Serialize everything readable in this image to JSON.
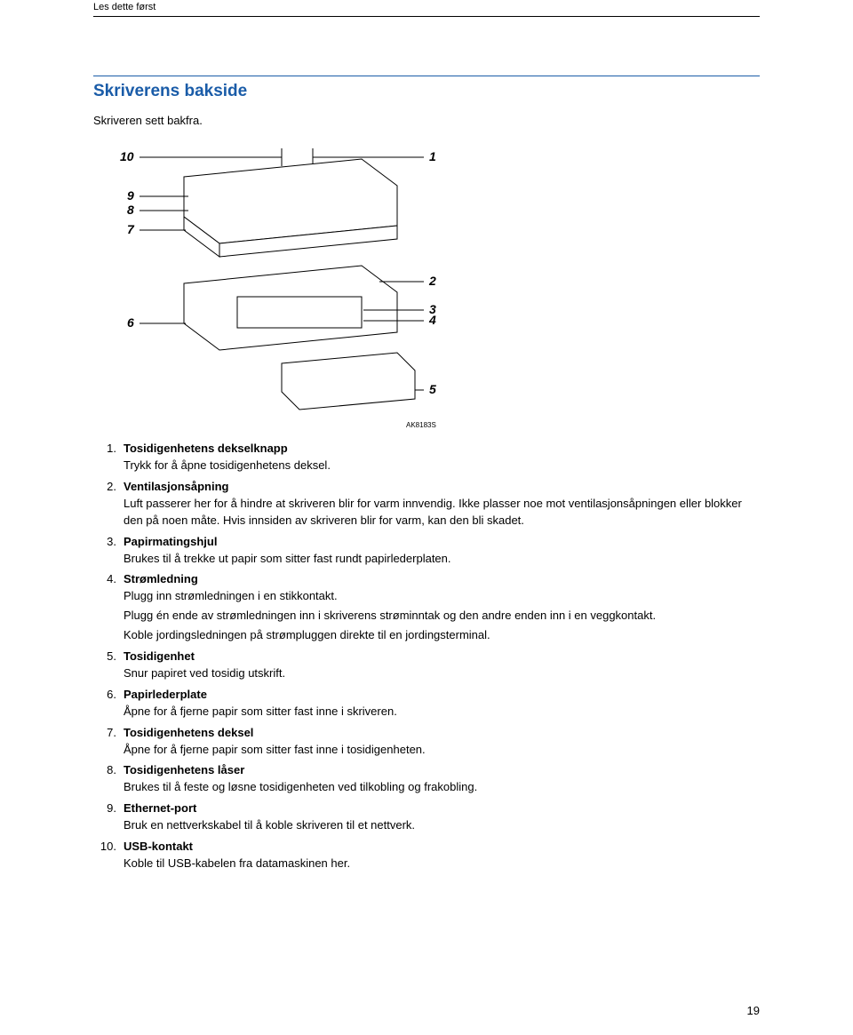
{
  "running_head": "Les dette først",
  "section_title": "Skriverens bakside",
  "lead": "Skriveren sett bakfra.",
  "figure": {
    "callouts_left": [
      "10",
      "9",
      "8",
      "7",
      "6"
    ],
    "callouts_right": [
      "1",
      "2",
      "3",
      "4",
      "5"
    ],
    "ref": "AK8183S"
  },
  "items": [
    {
      "term": "Tosidigenhetens dekselknapp",
      "paras": [
        "Trykk for å åpne tosidigenhetens deksel."
      ]
    },
    {
      "term": "Ventilasjonsåpning",
      "paras": [
        "Luft passerer her for å hindre at skriveren blir for varm innvendig. Ikke plasser noe mot ventilasjonsåpningen eller blokker den på noen måte. Hvis innsiden av skriveren blir for varm, kan den bli skadet."
      ]
    },
    {
      "term": "Papirmatingshjul",
      "paras": [
        "Brukes til å trekke ut papir som sitter fast rundt papirlederplaten."
      ]
    },
    {
      "term": "Strømledning",
      "paras": [
        "Plugg inn strømledningen i en stikkontakt.",
        "Plugg én ende av strømledningen inn i skriverens strøminntak og den andre enden inn i en veggkontakt.",
        "Koble jordingsledningen på strømpluggen direkte til en jordingsterminal."
      ]
    },
    {
      "term": "Tosidigenhet",
      "paras": [
        "Snur papiret ved tosidig utskrift."
      ]
    },
    {
      "term": "Papirlederplate",
      "paras": [
        "Åpne for å fjerne papir som sitter fast inne i skriveren."
      ]
    },
    {
      "term": "Tosidigenhetens deksel",
      "paras": [
        "Åpne for å fjerne papir som sitter fast inne i tosidigenheten."
      ]
    },
    {
      "term": "Tosidigenhetens låser",
      "paras": [
        "Brukes til å feste og løsne tosidigenheten ved tilkobling og frakobling."
      ]
    },
    {
      "term": "Ethernet-port",
      "paras": [
        "Bruk en nettverkskabel til å koble skriveren til et nettverk."
      ]
    },
    {
      "term": "USB-kontakt",
      "paras": [
        "Koble til USB-kabelen fra datamaskinen her."
      ]
    }
  ],
  "page_number": "19",
  "colors": {
    "accent": "#1a5ca8",
    "text": "#000000",
    "bg": "#ffffff"
  }
}
